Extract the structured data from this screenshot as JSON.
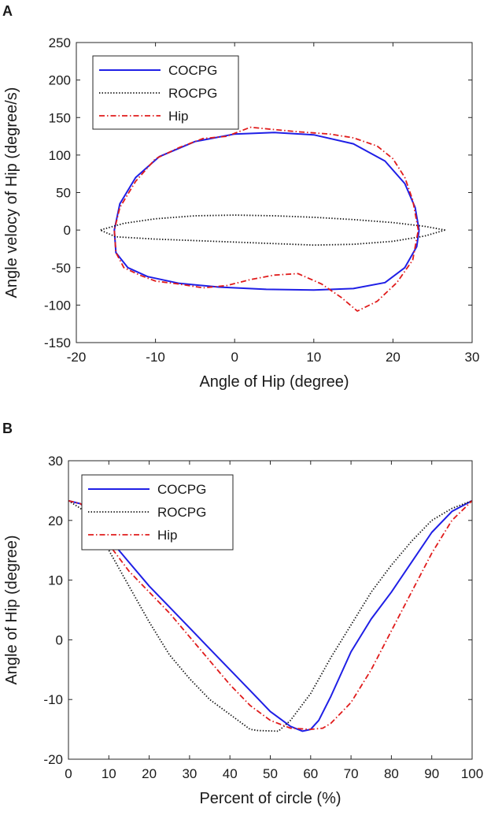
{
  "figure": {
    "panel_a_label": "A",
    "panel_b_label": "B"
  },
  "colors": {
    "COCPG": "#1f1fe6",
    "ROCPG": "#111111",
    "Hip": "#e01b1b"
  },
  "chart_data": [
    {
      "id": "A",
      "type": "line",
      "title": "",
      "xlabel": "Angle of Hip (degree)",
      "ylabel": "Angle velocy of Hip (degree/s)",
      "xlim": [
        -20,
        30
      ],
      "ylim": [
        -150,
        250
      ],
      "xticks": [
        -20,
        -10,
        0,
        10,
        20,
        30
      ],
      "yticks": [
        -150,
        -100,
        -50,
        0,
        50,
        100,
        150,
        200,
        250
      ],
      "legend_position": "top-left",
      "series": [
        {
          "name": "COCPG",
          "style": "solid",
          "x": [
            23.3,
            22.8,
            21.5,
            19.0,
            15.0,
            10.0,
            5.0,
            0.0,
            -5.0,
            -9.5,
            -12.5,
            -14.5,
            -15.2,
            -15.0,
            -13.5,
            -11.0,
            -7.0,
            -2.0,
            4.0,
            10.0,
            15.0,
            19.0,
            21.5,
            23.0,
            23.3
          ],
          "y": [
            0,
            30,
            62,
            92,
            115,
            127,
            130,
            128,
            118,
            98,
            70,
            35,
            0,
            -30,
            -50,
            -62,
            -71,
            -76,
            -79,
            -80,
            -78,
            -70,
            -50,
            -22,
            0
          ]
        },
        {
          "name": "ROCPG",
          "style": "dotted",
          "x": [
            26.6,
            24.0,
            20.0,
            15.0,
            10.0,
            5.0,
            0.0,
            -5.0,
            -10.0,
            -14.0,
            -17.0,
            -15.0,
            -10.0,
            -5.0,
            0.0,
            5.0,
            10.0,
            15.0,
            20.0,
            24.0,
            26.6
          ],
          "y": [
            0,
            5,
            10,
            14,
            17,
            19,
            20,
            19,
            15,
            9,
            0,
            -9,
            -12,
            -14,
            -16,
            -18,
            -20,
            -19,
            -15,
            -8,
            0
          ]
        },
        {
          "name": "Hip",
          "style": "dashdot",
          "x": [
            23.2,
            22.5,
            21.5,
            20.0,
            18.0,
            15.0,
            12.0,
            8.0,
            5.0,
            2.0,
            -1.0,
            -4.0,
            -7.0,
            -10.0,
            -12.5,
            -14.5,
            -15.2,
            -15.0,
            -14.0,
            -12.0,
            -10.0,
            -7.0,
            -4.0,
            -1.0,
            2.0,
            5.0,
            8.0,
            11.0,
            13.5,
            15.5,
            18.0,
            20.5,
            22.5,
            23.2
          ],
          "y": [
            0,
            40,
            70,
            95,
            112,
            123,
            128,
            131,
            134,
            137,
            125,
            122,
            110,
            95,
            65,
            30,
            0,
            -30,
            -50,
            -60,
            -68,
            -72,
            -77,
            -74,
            -66,
            -60,
            -58,
            -72,
            -90,
            -108,
            -95,
            -70,
            -40,
            0
          ]
        }
      ]
    },
    {
      "id": "B",
      "type": "line",
      "title": "",
      "xlabel": "Percent of circle (%)",
      "ylabel": "Angle of Hip (degree)",
      "xlim": [
        0,
        100
      ],
      "ylim": [
        -20,
        30
      ],
      "xticks": [
        0,
        10,
        20,
        30,
        40,
        50,
        60,
        70,
        80,
        90,
        100
      ],
      "yticks": [
        -20,
        -10,
        0,
        10,
        20,
        30
      ],
      "legend_position": "top-left",
      "series": [
        {
          "name": "COCPG",
          "style": "solid",
          "x": [
            0,
            3,
            5,
            8,
            10,
            15,
            20,
            25,
            30,
            35,
            40,
            45,
            50,
            55,
            58,
            60,
            62,
            65,
            70,
            75,
            80,
            85,
            90,
            95,
            100
          ],
          "y": [
            23.3,
            22.8,
            21.5,
            19.0,
            17.0,
            13.0,
            9.0,
            5.5,
            2.0,
            -1.5,
            -5.0,
            -8.5,
            -12.0,
            -14.5,
            -15.3,
            -15.0,
            -13.5,
            -9.5,
            -2.0,
            3.5,
            8.0,
            13.0,
            18.0,
            21.5,
            23.3
          ]
        },
        {
          "name": "ROCPG",
          "style": "dotted",
          "x": [
            0,
            3,
            5,
            10,
            15,
            20,
            25,
            30,
            35,
            40,
            45,
            47,
            52,
            55,
            60,
            65,
            70,
            75,
            80,
            85,
            90,
            95,
            100
          ],
          "y": [
            23.3,
            22.0,
            20.5,
            15.0,
            9.0,
            3.0,
            -2.5,
            -6.5,
            -10.0,
            -12.5,
            -15.0,
            -15.2,
            -15.3,
            -13.5,
            -9.0,
            -3.0,
            2.5,
            8.0,
            12.5,
            16.5,
            20.0,
            22.0,
            23.3
          ]
        },
        {
          "name": "Hip",
          "style": "dashdot",
          "x": [
            0,
            3,
            5,
            8,
            10,
            15,
            20,
            25,
            30,
            35,
            40,
            45,
            50,
            55,
            60,
            63,
            65,
            70,
            75,
            80,
            85,
            90,
            95,
            100
          ],
          "y": [
            23.3,
            22.8,
            21.5,
            19.0,
            16.0,
            11.5,
            8.0,
            4.5,
            0.5,
            -3.5,
            -7.5,
            -11.0,
            -13.5,
            -14.8,
            -15.0,
            -14.8,
            -14.0,
            -10.5,
            -5.0,
            1.5,
            8.0,
            14.5,
            20.0,
            23.3
          ]
        }
      ]
    }
  ]
}
